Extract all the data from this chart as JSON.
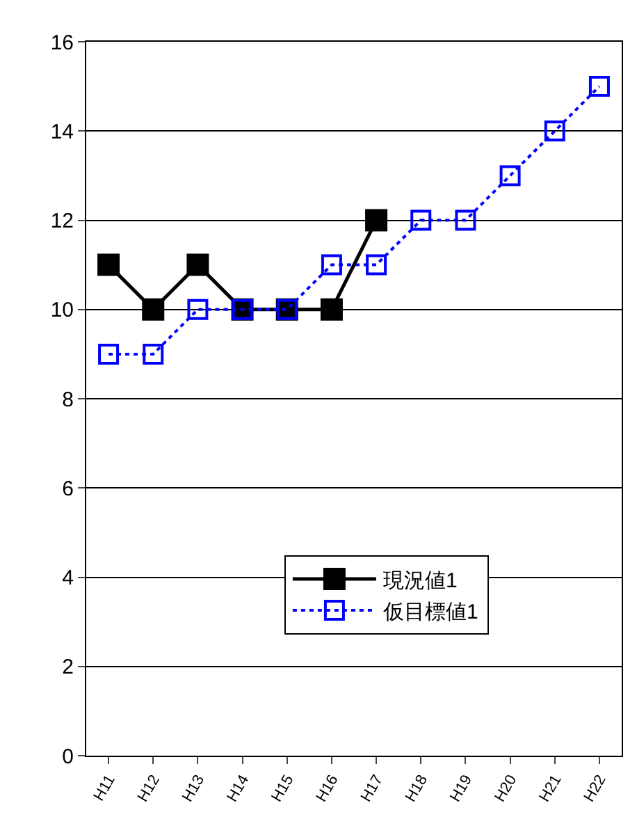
{
  "chart_data": {
    "type": "line",
    "categories": [
      "H11",
      "H12",
      "H13",
      "H14",
      "H15",
      "H16",
      "H17",
      "H18",
      "H19",
      "H20",
      "H21",
      "H22"
    ],
    "series": [
      {
        "name": "現況値1",
        "color": "#000000",
        "values": [
          11,
          10,
          11,
          10,
          10,
          10,
          12,
          null,
          null,
          null,
          null,
          null
        ],
        "marker": "square",
        "line_style": "solid"
      },
      {
        "name": "仮目標値1",
        "color": "#0000ff",
        "values": [
          9,
          9,
          10,
          10,
          10,
          11,
          11,
          12,
          12,
          13,
          14,
          15
        ],
        "marker": "square",
        "line_style": "dotted"
      }
    ],
    "ylim": [
      0,
      16
    ],
    "yticks": [
      0,
      2,
      4,
      6,
      8,
      10,
      12,
      14,
      16
    ],
    "grid": "y",
    "legend": "bottom right"
  }
}
